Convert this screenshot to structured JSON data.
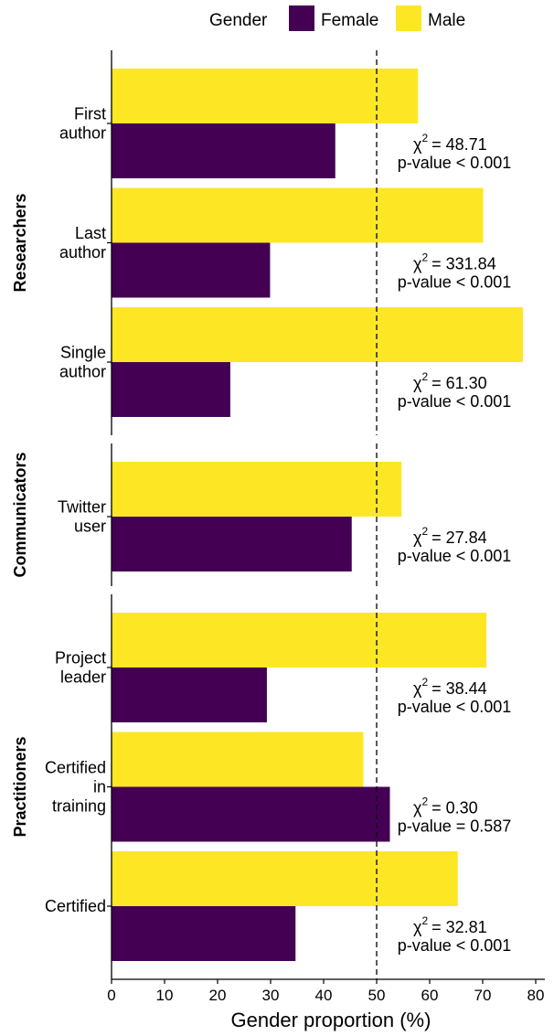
{
  "chart_data": {
    "type": "bar",
    "orientation": "horizontal",
    "xlabel": "Gender proportion (%)",
    "xlim": [
      0,
      82
    ],
    "xticks": [
      0,
      10,
      20,
      30,
      40,
      50,
      60,
      70,
      80
    ],
    "reference_line_x": 50,
    "legend": {
      "title": "Gender",
      "position": "top",
      "entries": [
        {
          "name": "Female",
          "color": "#440154"
        },
        {
          "name": "Male",
          "color": "#fde725"
        }
      ]
    },
    "series": [
      {
        "name": "Female",
        "color": "#440154"
      },
      {
        "name": "Male",
        "color": "#fde725"
      }
    ],
    "groups": [
      {
        "name": "Researchers",
        "rows": [
          {
            "label": [
              "First",
              "author"
            ],
            "male": 57.8,
            "female": 42.2,
            "chi_label": "χ",
            "chi_sup": "2",
            "chi_value": "=  48.71",
            "p_text": "p-value < 0.001"
          },
          {
            "label": [
              "Last",
              "author"
            ],
            "male": 70.1,
            "female": 29.9,
            "chi_label": "χ",
            "chi_sup": "2",
            "chi_value": "= 331.84",
            "p_text": "p-value < 0.001"
          },
          {
            "label": [
              "Single",
              "author"
            ],
            "male": 77.6,
            "female": 22.4,
            "chi_label": "χ",
            "chi_sup": "2",
            "chi_value": "=  61.30",
            "p_text": "p-value < 0.001"
          }
        ]
      },
      {
        "name": "Communicators",
        "rows": [
          {
            "label": [
              "Twitter",
              "user"
            ],
            "male": 54.7,
            "female": 45.3,
            "chi_label": "χ",
            "chi_sup": "2",
            "chi_value": "=  27.84",
            "p_text": "p-value < 0.001"
          }
        ]
      },
      {
        "name": "Practitioners",
        "rows": [
          {
            "label": [
              "Project",
              "leader"
            ],
            "male": 70.7,
            "female": 29.3,
            "chi_label": "χ",
            "chi_sup": "2",
            "chi_value": "=  38.44",
            "p_text": "p-value < 0.001"
          },
          {
            "label": [
              "Certified",
              "in",
              "training"
            ],
            "male": 47.5,
            "female": 52.5,
            "chi_label": "χ",
            "chi_sup": "2",
            "chi_value": "=   0.30",
            "p_text": "p-value = 0.587"
          },
          {
            "label": [
              "Certified"
            ],
            "male": 65.3,
            "female": 34.7,
            "chi_label": "χ",
            "chi_sup": "2",
            "chi_value": "=  32.81",
            "p_text": "p-value < 0.001"
          }
        ]
      }
    ]
  }
}
